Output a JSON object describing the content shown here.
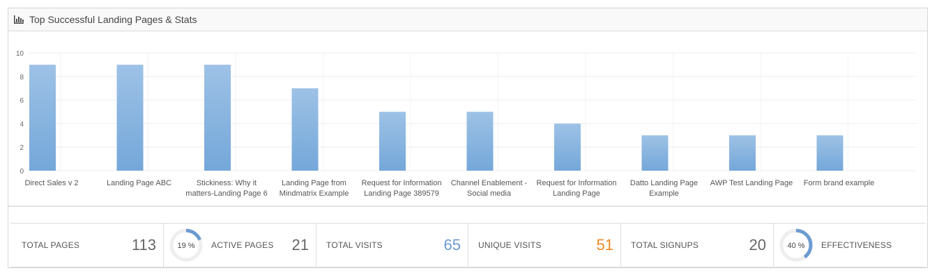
{
  "header": {
    "title": "Top Successful Landing Pages & Stats"
  },
  "chart_data": {
    "type": "bar",
    "categories": [
      [
        "Direct Sales v 2"
      ],
      [
        "Landing Page ABC"
      ],
      [
        "Stickiness: Why it",
        "matters-Landing Page 6"
      ],
      [
        "Landing Page from",
        "Mindmatrix Example"
      ],
      [
        "Request for Information",
        "Landing Page 389579"
      ],
      [
        "Channel Enablement -",
        "Social media"
      ],
      [
        "Request for Information",
        "Landing Page"
      ],
      [
        "Datto Landing Page",
        "Example"
      ],
      [
        "AWP Test Landing Page"
      ],
      [
        "Form brand example"
      ]
    ],
    "values": [
      9,
      9,
      9,
      7,
      5,
      5,
      4,
      3,
      3,
      3
    ],
    "yticks": [
      "0",
      "2",
      "4",
      "6",
      "8",
      "10"
    ],
    "ylim": [
      0,
      10
    ],
    "grid": true,
    "bar_color": "#8cb4de"
  },
  "stats": {
    "total_pages": {
      "label": "TOTAL PAGES",
      "value": "113",
      "color": "#666666"
    },
    "active_pages": {
      "label": "ACTIVE PAGES",
      "value": "21",
      "color": "#666666",
      "percent_label": "19 %",
      "percent": 19
    },
    "total_visits": {
      "label": "TOTAL VISITS",
      "value": "65",
      "color": "#6b9bd1"
    },
    "unique_visits": {
      "label": "UNIQUE VISITS",
      "value": "51",
      "color": "#f08a24"
    },
    "total_signups": {
      "label": "TOTAL SIGNUPS",
      "value": "20",
      "color": "#666666"
    },
    "effectiveness": {
      "label": "EFFECTIVENESS",
      "percent_label": "40 %",
      "percent": 40
    }
  },
  "colors": {
    "ring_track": "#eeeeee",
    "ring_fill": "#6b9bd1"
  }
}
